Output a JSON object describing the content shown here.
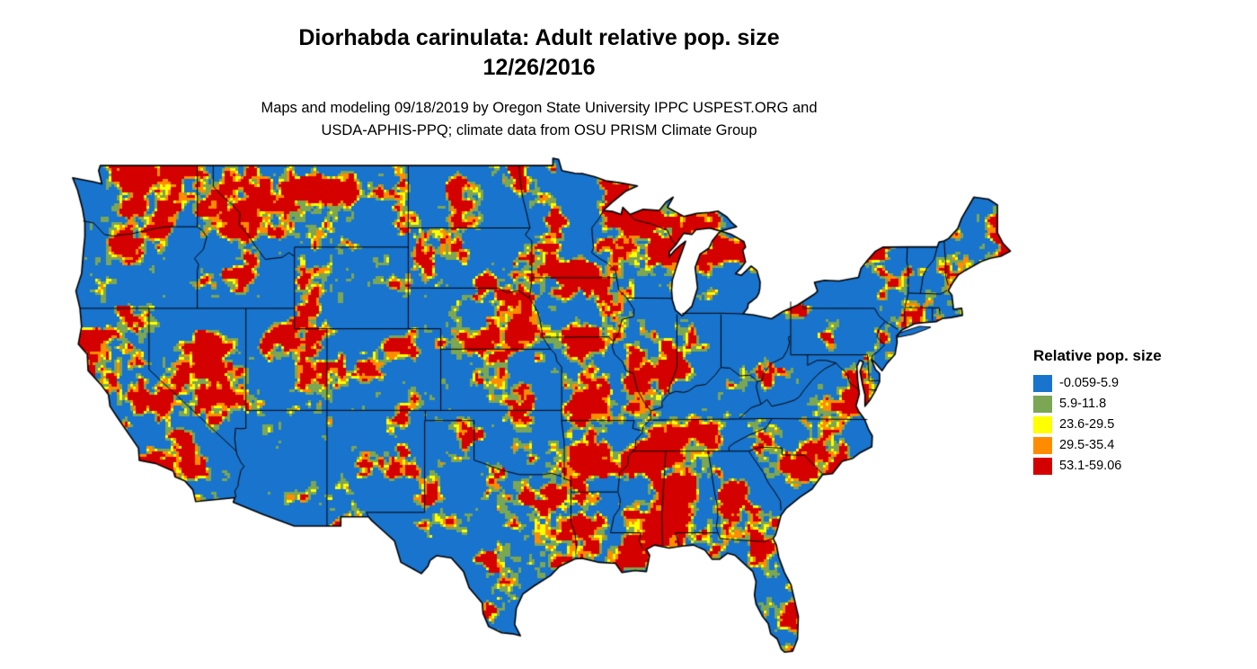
{
  "page": {
    "background": "#ffffff"
  },
  "header": {
    "title_line1": "Diorhabda carinulata: Adult relative pop. size",
    "title_line2": "12/26/2016",
    "subtitle_line1": "Maps and modeling 09/18/2019 by Oregon State University IPPC USPEST.ORG and",
    "subtitle_line2": "USDA-APHIS-PPQ; climate data from OSU PRISM Climate Group"
  },
  "legend": {
    "title": "Relative pop. size",
    "items": [
      {
        "label": "-0.059-5.9",
        "color": "#1874cd"
      },
      {
        "label": "5.9-11.8",
        "color": "#7ba654"
      },
      {
        "label": "23.6-29.5",
        "color": "#ffff00"
      },
      {
        "label": "29.5-35.4",
        "color": "#ff8c00"
      },
      {
        "label": "53.1-59.06",
        "color": "#d40000"
      }
    ]
  },
  "map": {
    "type": "raster-choropleth",
    "region": "Contiguous United States",
    "base_color": "#1874cd",
    "boundary_color": "#000000",
    "water_color": "#ffffff"
  }
}
